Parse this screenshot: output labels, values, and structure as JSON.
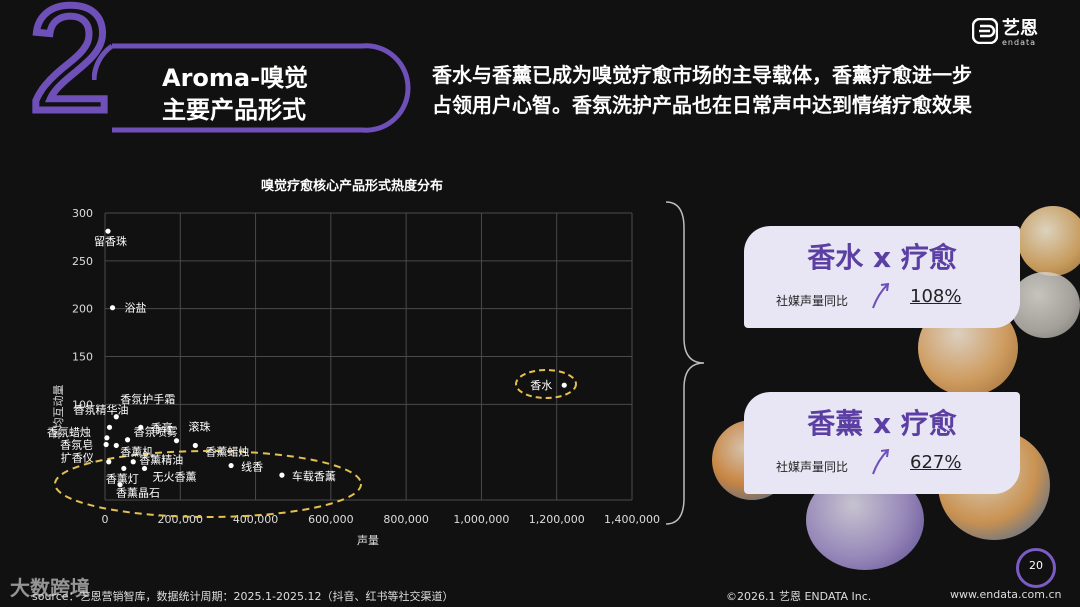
{
  "section": {
    "number": "2",
    "title_line1": "Aroma-嗅觉",
    "title_line2": "主要产品形式"
  },
  "headline": {
    "line1": "香水与香薰已成为嗅觉疗愈市场的主导载体，香薰疗愈进一步",
    "line2": "占领用户心智。香氛洗护产品也在日常声中达到情绪疗愈效果"
  },
  "logo": {
    "cn": "艺恩",
    "en": "endata"
  },
  "colors": {
    "accent": "#6e50b8",
    "ellipse": "#e3c04f",
    "card_bg": "#e8e6f4",
    "card_title": "#5b3fa3"
  },
  "chart_data": {
    "type": "scatter",
    "title": "嗅觉疗愈核心产品形式热度分布",
    "xlabel": "声量",
    "ylabel": "平均互动量",
    "xlim": [
      0,
      1400000
    ],
    "ylim": [
      0,
      300
    ],
    "xticks": [
      "0",
      "200,000",
      "400,000",
      "600,000",
      "800,000",
      "1,000,000",
      "1,200,000",
      "1,400,000"
    ],
    "yticks": [
      "300",
      "250",
      "200",
      "150",
      "100"
    ],
    "grid": true,
    "points": [
      {
        "label": "留香珠",
        "x": 8000,
        "y": 281
      },
      {
        "label": "浴盐",
        "x": 20000,
        "y": 201
      },
      {
        "label": "香水",
        "x": 1220000,
        "y": 120
      },
      {
        "label": "香氛护手霜",
        "x": 30000,
        "y": 87
      },
      {
        "label": "香氛精华油",
        "x": 12000,
        "y": 76
      },
      {
        "label": "香膏",
        "x": 95000,
        "y": 76
      },
      {
        "label": "香氛蜡烛",
        "x": 5000,
        "y": 65
      },
      {
        "label": "香氛喷雾",
        "x": 60000,
        "y": 63
      },
      {
        "label": "滚珠",
        "x": 190000,
        "y": 62
      },
      {
        "label": "香氛皂",
        "x": 3000,
        "y": 58
      },
      {
        "label": "香薰机",
        "x": 30000,
        "y": 57
      },
      {
        "label": "香薰蜡烛",
        "x": 240000,
        "y": 57
      },
      {
        "label": "扩香仪",
        "x": 10000,
        "y": 40
      },
      {
        "label": "香薰精油",
        "x": 75000,
        "y": 40
      },
      {
        "label": "线香",
        "x": 335000,
        "y": 36
      },
      {
        "label": "香薰灯",
        "x": 50000,
        "y": 33
      },
      {
        "label": "无火香薰",
        "x": 105000,
        "y": 33
      },
      {
        "label": "车载香薰",
        "x": 470000,
        "y": 26
      },
      {
        "label": "香薰晶石",
        "x": 40000,
        "y": 16
      }
    ]
  },
  "cards": [
    {
      "title": "香水 x 疗愈",
      "label": "社媒声量同比",
      "value": "108%"
    },
    {
      "title": "香薰 x 疗愈",
      "label": "社媒声量同比",
      "value": "627%"
    }
  ],
  "footer": {
    "source": "source：艺恩营销智库，数据统计周期：2025.1-2025.12（抖音、红书等社交渠道）",
    "copyright": "©2026.1 艺恩 ENDATA Inc.",
    "url": "www.endata.com.cn",
    "page": "20",
    "watermark": "大数跨境"
  }
}
